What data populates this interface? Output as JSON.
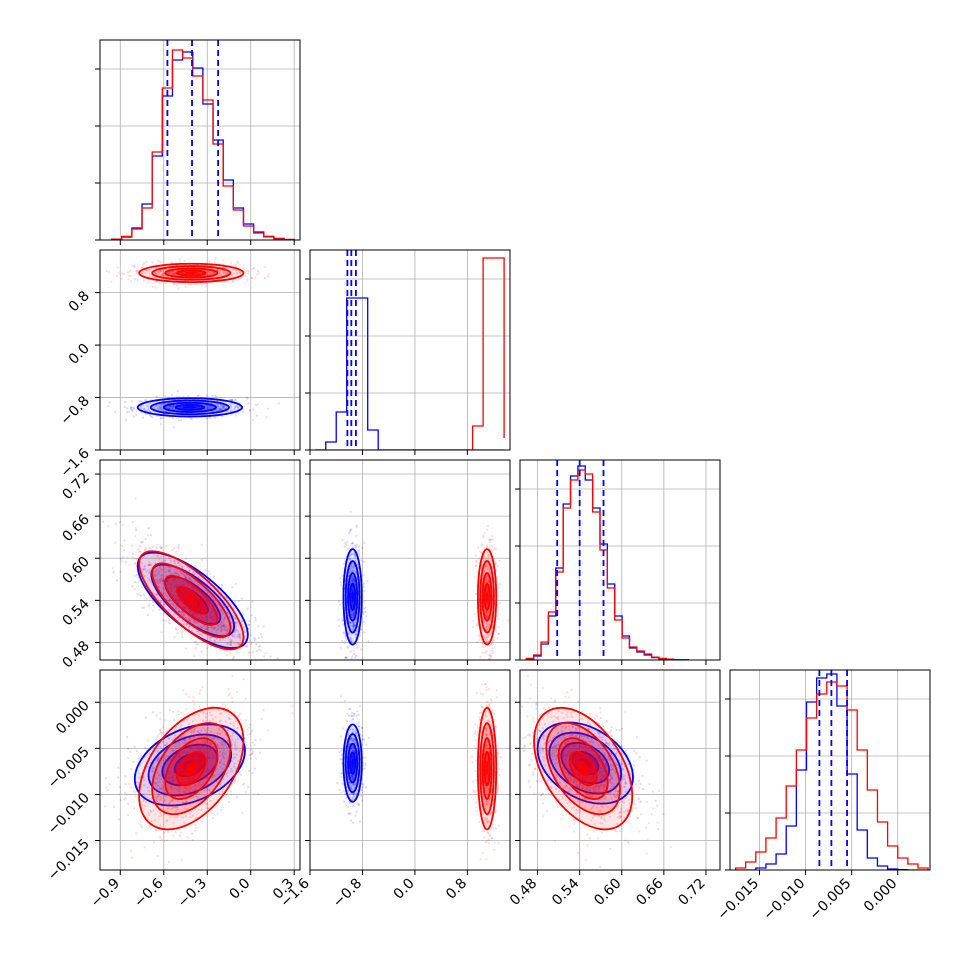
{
  "chart_data": {
    "type": "corner",
    "colors": {
      "series_a": "#0000ff",
      "series_b": "#ff0000",
      "grid": "#b0b0b0"
    },
    "grid": true,
    "parameters": [
      {
        "ticks": [
          -0.9,
          -0.6,
          -0.3,
          0.0,
          0.3
        ],
        "tick_labels": [
          "−0.9",
          "−0.6",
          "−0.3",
          "0.0",
          "0.3"
        ],
        "range": [
          -1.04,
          0.34
        ],
        "quantiles": [
          -0.575,
          -0.405,
          -0.225
        ]
      },
      {
        "ticks": [
          -1.6,
          -0.8,
          0.0,
          0.8
        ],
        "tick_labels": [
          "−1.6",
          "−0.8",
          "0.0",
          "0.8"
        ],
        "range": [
          -1.6,
          1.45
        ],
        "quantiles": [
          -1.03,
          -0.97,
          -0.9
        ]
      },
      {
        "ticks": [
          0.48,
          0.54,
          0.6,
          0.66,
          0.72
        ],
        "tick_labels": [
          "0.48",
          "0.54",
          "0.60",
          "0.66",
          "0.72"
        ],
        "range": [
          0.455,
          0.74
        ],
        "quantiles": [
          0.508,
          0.54,
          0.574
        ]
      },
      {
        "ticks": [
          -0.015,
          -0.01,
          -0.005,
          0.0
        ],
        "tick_labels": [
          "−0.015",
          "−0.010",
          "−0.005",
          "0.000"
        ],
        "range": [
          -0.0182,
          0.0035
        ],
        "quantiles": [
          -0.0085,
          -0.0072,
          -0.0055
        ]
      }
    ],
    "histograms": [
      {
        "edges": [
          -0.96,
          -0.89,
          -0.82,
          -0.75,
          -0.68,
          -0.61,
          -0.54,
          -0.47,
          -0.4,
          -0.33,
          -0.26,
          -0.19,
          -0.12,
          -0.05,
          0.02,
          0.09,
          0.16,
          0.23,
          0.3
        ],
        "series_a": [
          0.002,
          0.015,
          0.06,
          0.18,
          0.42,
          0.72,
          0.9,
          0.94,
          0.86,
          0.68,
          0.5,
          0.3,
          0.16,
          0.08,
          0.04,
          0.018,
          0.008,
          0.002
        ],
        "series_b": [
          0.004,
          0.018,
          0.055,
          0.16,
          0.44,
          0.76,
          0.95,
          0.91,
          0.82,
          0.7,
          0.48,
          0.27,
          0.15,
          0.07,
          0.035,
          0.016,
          0.006,
          0.003
        ]
      },
      {
        "edges": [
          -1.52,
          -1.36,
          -1.2,
          -1.04,
          -0.88,
          -0.72,
          -0.56,
          -0.4,
          -0.24,
          -0.08,
          0.08,
          0.24,
          0.4,
          0.56,
          0.72,
          0.88,
          1.04,
          1.2,
          1.36
        ],
        "series_a": [
          0.0,
          0.04,
          0.19,
          0.76,
          0.76,
          0.1,
          0.0,
          0.0,
          0.0,
          0.0,
          0.0,
          0.0,
          0.0,
          0.0,
          0.0,
          0.0,
          0.0,
          0.0
        ],
        "series_b": [
          0.0,
          0.0,
          0.0,
          0.0,
          0.0,
          0.0,
          0.0,
          0.0,
          0.0,
          0.0,
          0.0,
          0.0,
          0.0,
          0.0,
          0.0,
          0.12,
          0.96,
          0.96,
          0.06
        ]
      },
      {
        "edges": [
          0.464,
          0.4745,
          0.485,
          0.4955,
          0.506,
          0.5165,
          0.527,
          0.5375,
          0.548,
          0.5585,
          0.569,
          0.5795,
          0.59,
          0.6005,
          0.611,
          0.6215,
          0.632,
          0.6425,
          0.653,
          0.6635,
          0.674,
          0.6845,
          0.695
        ],
        "series_a": [
          0.006,
          0.02,
          0.08,
          0.22,
          0.46,
          0.78,
          0.92,
          0.97,
          0.9,
          0.76,
          0.58,
          0.38,
          0.22,
          0.12,
          0.06,
          0.04,
          0.025,
          0.012,
          0.006,
          0.004,
          0.002,
          0.001
        ],
        "series_b": [
          0.008,
          0.025,
          0.09,
          0.24,
          0.44,
          0.76,
          0.9,
          0.95,
          0.93,
          0.74,
          0.55,
          0.36,
          0.2,
          0.11,
          0.065,
          0.045,
          0.03,
          0.014,
          0.008,
          0.004,
          0.002,
          0.001
        ]
      },
      {
        "edges": [
          -0.0176,
          -0.0165,
          -0.0154,
          -0.0143,
          -0.0132,
          -0.0121,
          -0.011,
          -0.0099,
          -0.0088,
          -0.0077,
          -0.0066,
          -0.0055,
          -0.0044,
          -0.0033,
          -0.0022,
          -0.0011,
          0.0,
          0.0011,
          0.0022,
          0.0033
        ],
        "series_a": [
          0.0,
          0.0,
          0.01,
          0.03,
          0.08,
          0.22,
          0.5,
          0.84,
          0.96,
          0.98,
          0.82,
          0.48,
          0.2,
          0.06,
          0.02,
          0.005,
          0.002,
          0.0,
          0.0
        ],
        "series_b": [
          0.01,
          0.04,
          0.09,
          0.16,
          0.26,
          0.42,
          0.6,
          0.76,
          0.88,
          0.94,
          0.92,
          0.8,
          0.6,
          0.4,
          0.24,
          0.12,
          0.06,
          0.03,
          0.01
        ]
      }
    ],
    "pairs": [
      {
        "x": 0,
        "y": 1,
        "series_a": {
          "mean": [
            -0.42,
            -0.95
          ],
          "sd": [
            0.18,
            0.07
          ],
          "rho": 0.0
        },
        "series_b": {
          "mean": [
            -0.41,
            1.1
          ],
          "sd": [
            0.18,
            0.07
          ],
          "rho": 0.0
        }
      },
      {
        "x": 0,
        "y": 2,
        "series_a": {
          "mean": [
            -0.4,
            0.54
          ],
          "sd": [
            0.19,
            0.034
          ],
          "rho": -0.72
        },
        "series_b": {
          "mean": [
            -0.41,
            0.54
          ],
          "sd": [
            0.18,
            0.035
          ],
          "rho": -0.75
        }
      },
      {
        "x": 1,
        "y": 2,
        "series_a": {
          "mean": [
            -0.95,
            0.545
          ],
          "sd": [
            0.07,
            0.034
          ],
          "rho": 0.0
        },
        "series_b": {
          "mean": [
            1.1,
            0.545
          ],
          "sd": [
            0.07,
            0.034
          ],
          "rho": 0.0
        }
      },
      {
        "x": 0,
        "y": 3,
        "series_a": {
          "mean": [
            -0.42,
            -0.0068
          ],
          "sd": [
            0.19,
            0.0022
          ],
          "rho": 0.35
        },
        "series_b": {
          "mean": [
            -0.41,
            -0.0072
          ],
          "sd": [
            0.18,
            0.0033
          ],
          "rho": 0.45
        }
      },
      {
        "x": 1,
        "y": 3,
        "series_a": {
          "mean": [
            -0.95,
            -0.0066
          ],
          "sd": [
            0.07,
            0.0021
          ],
          "rho": 0.0
        },
        "series_b": {
          "mean": [
            1.1,
            -0.0072
          ],
          "sd": [
            0.07,
            0.0033
          ],
          "rho": 0.0
        }
      },
      {
        "x": 2,
        "y": 3,
        "series_a": {
          "mean": [
            0.548,
            -0.0066
          ],
          "sd": [
            0.034,
            0.0022
          ],
          "rho": -0.35
        },
        "series_b": {
          "mean": [
            0.545,
            -0.0072
          ],
          "sd": [
            0.035,
            0.0033
          ],
          "rho": -0.45
        }
      }
    ]
  }
}
